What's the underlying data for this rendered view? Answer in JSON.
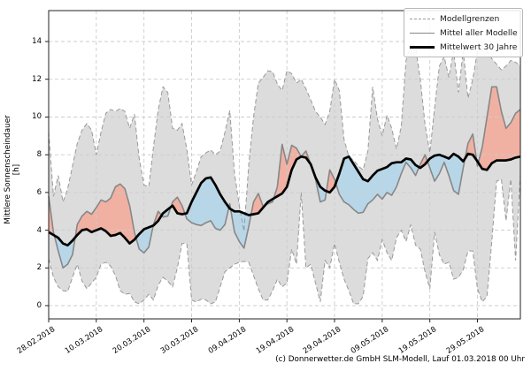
{
  "meta": {
    "copyright": "(c) Donnerwetter.de GmbH SLM-Modell, Lauf 01.03.2018 00 Uhr"
  },
  "chart_data": {
    "type": "line",
    "title": "",
    "xlabel": "",
    "ylabel": "Mittlere Sonnenscheindauer [h]",
    "grid": true,
    "legend_position": "upper right",
    "ylim": [
      -0.7,
      15.64
    ],
    "xlim_days": [
      0,
      99
    ],
    "y_ticks": [
      0,
      2,
      4,
      6,
      8,
      10,
      12,
      14
    ],
    "x_tick_days": [
      0,
      10,
      20,
      30,
      40,
      50,
      60,
      70,
      80,
      90
    ],
    "x_tick_labels": [
      "28.02.2018",
      "10.03.2018",
      "20.03.2018",
      "30.03.2018",
      "09.04.2018",
      "19.04.2018",
      "29.04.2018",
      "09.05.2018",
      "19.05.2018",
      "29.05.2018"
    ],
    "legend": [
      {
        "label": "Modellgrenzen",
        "style": "dashed-gray"
      },
      {
        "label": "Mittel aller Modelle",
        "style": "solid-gray"
      },
      {
        "label": "Mittelwert 30 Jahre",
        "style": "solid-black-thick"
      }
    ],
    "colors": {
      "envelope_fill": "#dcdcdc",
      "envelope_line": "#999999",
      "mean_line": "#878787",
      "clim_line": "#000000",
      "above_fill": "#f0b1a3",
      "below_fill": "#b7d7e9",
      "grid_line": "#cccccc",
      "background": "#ffffff"
    },
    "series": [
      {
        "name": "model_max",
        "role": "envelope-top",
        "values": [
          9.2,
          5.8,
          6.9,
          5.5,
          6.2,
          7.4,
          8.6,
          9.3,
          9.65,
          9.3,
          8.0,
          9.2,
          10.2,
          10.4,
          10.3,
          10.45,
          10.3,
          9.4,
          10.15,
          7.8,
          6.4,
          6.3,
          8.4,
          10.4,
          11.6,
          11.3,
          9.4,
          9.3,
          9.65,
          8.3,
          6.4,
          7.1,
          7.9,
          8.1,
          8.25,
          8.0,
          8.2,
          9.2,
          10.35,
          7.0,
          5.3,
          3.95,
          7.5,
          10.0,
          11.8,
          12.1,
          12.45,
          12.4,
          11.75,
          11.4,
          12.45,
          12.3,
          11.8,
          12.0,
          11.5,
          10.9,
          10.3,
          10.0,
          9.6,
          10.3,
          12.0,
          11.4,
          8.8,
          7.9,
          7.7,
          7.4,
          7.2,
          8.2,
          11.6,
          9.9,
          9.0,
          10.1,
          9.4,
          8.3,
          9.5,
          13.0,
          13.9,
          13.7,
          12.0,
          9.6,
          8.1,
          10.5,
          12.7,
          13.2,
          12.1,
          13.5,
          11.3,
          13.5,
          11.0,
          12.0,
          13.5,
          13.6,
          13.5,
          13.1,
          12.8,
          12.5,
          12.7,
          13.0,
          12.9,
          12.7
        ]
      },
      {
        "name": "model_min",
        "role": "envelope-bottom",
        "values": [
          2.5,
          1.5,
          1.0,
          0.8,
          0.75,
          1.5,
          2.2,
          1.3,
          0.9,
          1.2,
          1.5,
          2.2,
          2.3,
          2.1,
          1.6,
          0.8,
          0.6,
          0.65,
          0.2,
          0.1,
          0.3,
          0.6,
          0.3,
          1.1,
          1.5,
          1.3,
          1.0,
          2.0,
          3.3,
          3.3,
          0.3,
          0.2,
          0.35,
          0.3,
          0.1,
          0.2,
          1.0,
          1.8,
          2.0,
          2.2,
          2.3,
          2.35,
          2.3,
          1.6,
          0.9,
          0.3,
          0.3,
          0.8,
          1.4,
          1.0,
          1.2,
          3.0,
          2.2,
          6.0,
          2.0,
          2.2,
          1.2,
          0.2,
          2.4,
          2.0,
          3.3,
          2.3,
          1.4,
          0.8,
          0.1,
          0.1,
          0.5,
          2.5,
          2.8,
          2.4,
          3.5,
          2.8,
          2.4,
          3.6,
          4.0,
          3.4,
          4.3,
          3.2,
          3.0,
          1.8,
          0.9,
          3.9,
          2.7,
          2.2,
          2.3,
          1.4,
          1.5,
          1.9,
          2.9,
          2.9,
          0.9,
          0.2,
          0.5,
          3.4,
          6.6,
          6.7,
          4.5,
          6.7,
          2.4,
          7.0
        ]
      },
      {
        "name": "model_mean",
        "role": "mean",
        "values": [
          5.8,
          3.9,
          2.9,
          2.0,
          2.2,
          2.7,
          4.3,
          4.75,
          5.0,
          4.85,
          5.2,
          5.6,
          5.5,
          5.7,
          6.3,
          6.45,
          6.2,
          5.3,
          3.9,
          3.0,
          2.8,
          3.1,
          4.3,
          5.0,
          4.7,
          4.75,
          5.5,
          5.75,
          5.3,
          4.6,
          4.4,
          4.3,
          4.25,
          4.4,
          4.5,
          4.1,
          4.0,
          4.3,
          5.4,
          3.9,
          3.4,
          3.05,
          4.2,
          5.5,
          5.95,
          5.25,
          5.4,
          5.5,
          6.3,
          8.55,
          7.5,
          8.5,
          8.35,
          7.9,
          8.2,
          7.5,
          6.7,
          5.5,
          5.6,
          7.2,
          6.7,
          5.9,
          5.5,
          5.35,
          5.1,
          4.9,
          4.95,
          5.4,
          5.6,
          5.9,
          5.65,
          6.0,
          5.85,
          6.3,
          7.0,
          7.6,
          7.3,
          6.9,
          7.5,
          8.0,
          7.3,
          6.6,
          7.0,
          7.6,
          6.9,
          6.1,
          5.9,
          7.3,
          8.6,
          9.1,
          7.4,
          8.4,
          10.0,
          11.6,
          11.6,
          10.3,
          9.4,
          9.7,
          10.2,
          10.4
        ]
      },
      {
        "name": "clim_30yr",
        "role": "climatology",
        "values": [
          3.9,
          3.75,
          3.6,
          3.3,
          3.2,
          3.45,
          3.75,
          4.0,
          4.05,
          3.9,
          4.0,
          4.1,
          3.95,
          3.7,
          3.75,
          3.85,
          3.6,
          3.3,
          3.5,
          3.8,
          4.05,
          4.15,
          4.25,
          4.5,
          4.9,
          5.1,
          5.3,
          4.9,
          4.85,
          4.9,
          5.5,
          6.0,
          6.5,
          6.75,
          6.8,
          6.4,
          5.9,
          5.5,
          5.15,
          5.0,
          5.0,
          4.9,
          4.8,
          4.85,
          4.9,
          5.2,
          5.5,
          5.65,
          5.8,
          5.95,
          6.3,
          7.2,
          7.75,
          7.9,
          7.85,
          7.5,
          6.8,
          6.3,
          6.1,
          6.0,
          6.3,
          7.0,
          7.8,
          7.9,
          7.5,
          7.1,
          6.7,
          6.6,
          6.9,
          7.15,
          7.25,
          7.35,
          7.55,
          7.6,
          7.6,
          7.8,
          7.75,
          7.45,
          7.3,
          7.5,
          7.8,
          7.95,
          8.0,
          7.9,
          7.8,
          8.05,
          7.9,
          7.65,
          8.05,
          8.0,
          7.65,
          7.25,
          7.2,
          7.55,
          7.7,
          7.7,
          7.7,
          7.75,
          7.85,
          7.9
        ]
      }
    ]
  }
}
